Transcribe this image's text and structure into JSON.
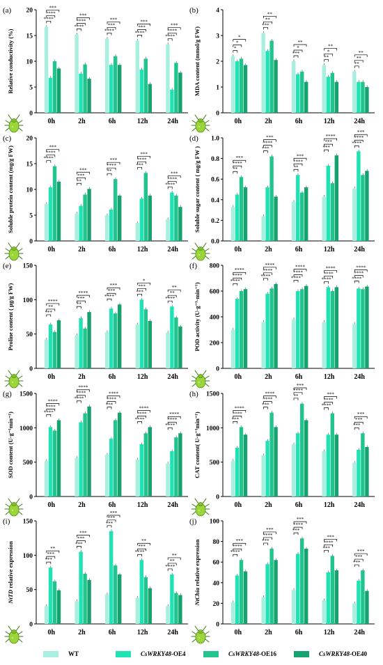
{
  "colors": [
    "#a8efe0",
    "#1fe3b4",
    "#22c48e",
    "#16a26e"
  ],
  "legend": [
    {
      "gene": "",
      "suffix": "WT"
    },
    {
      "gene": "CsWRKY48",
      "suffix": "-OE4"
    },
    {
      "gene": "CsWRKY48",
      "suffix": "-OE16"
    },
    {
      "gene": "CsWRKY48",
      "suffix": "-OE40"
    }
  ],
  "chart_data": [
    {
      "panel": "(a)",
      "type": "bar",
      "ylabel": "Relative conductivity (%)",
      "ylim": [
        0,
        20
      ],
      "yticks": [
        0,
        5,
        10,
        15,
        20
      ],
      "categories": [
        "0h",
        "2h",
        "6h",
        "12h",
        "24h"
      ],
      "series": [
        {
          "name": "WT",
          "values": [
            16.7,
            15.2,
            14.4,
            14.0,
            13.3
          ]
        },
        {
          "name": "CsWRKY48-OE4",
          "values": [
            6.8,
            7.6,
            9.3,
            8.4,
            4.5
          ]
        },
        {
          "name": "CsWRKY48-OE16",
          "values": [
            10.0,
            9.4,
            11.0,
            10.5,
            9.7
          ]
        },
        {
          "name": "CsWRKY48-OE40",
          "values": [
            8.6,
            6.6,
            9.3,
            5.6,
            7.8
          ]
        }
      ],
      "significance": [
        [
          "****",
          "****",
          "***"
        ],
        [
          "****",
          "****",
          "***"
        ],
        [
          "****",
          "***",
          "***"
        ],
        [
          "****",
          "***",
          "***"
        ],
        [
          "****",
          "****",
          "***"
        ]
      ]
    },
    {
      "panel": "(b)",
      "type": "bar",
      "ylabel": "MDA content (mmol/g FW)",
      "ylim": [
        0,
        4
      ],
      "yticks": [
        0,
        1,
        2,
        3,
        4
      ],
      "categories": [
        "0h",
        "2h",
        "6h",
        "12h",
        "24h"
      ],
      "series": [
        {
          "name": "WT",
          "values": [
            2.2,
            3.1,
            2.0,
            1.85,
            1.6
          ]
        },
        {
          "name": "CsWRKY48-OE4",
          "values": [
            2.0,
            2.4,
            1.5,
            1.4,
            1.2
          ]
        },
        {
          "name": "CsWRKY48-OE16",
          "values": [
            2.1,
            2.8,
            1.6,
            1.55,
            1.2
          ]
        },
        {
          "name": "CsWRKY48-OE40",
          "values": [
            1.85,
            2.05,
            1.2,
            1.2,
            1.0
          ]
        }
      ],
      "significance": [
        [
          "*",
          "*",
          "*"
        ],
        [
          "***",
          "**",
          "**"
        ],
        [
          "***",
          "*",
          "**"
        ],
        [
          "**",
          "*",
          "**"
        ],
        [
          "**",
          "**",
          "**"
        ]
      ]
    },
    {
      "panel": "(c)",
      "type": "bar",
      "ylabel": "Soluble protein content (mg/g FW)",
      "ylim": [
        0,
        20
      ],
      "yticks": [
        0,
        5,
        10,
        15,
        20
      ],
      "categories": [
        "0h",
        "2h",
        "6h",
        "12h",
        "24h"
      ],
      "series": [
        {
          "name": "WT",
          "values": [
            7.2,
            5.3,
            5.0,
            3.5,
            4.2
          ]
        },
        {
          "name": "CsWRKY48-OE4",
          "values": [
            10.4,
            6.8,
            6.1,
            8.2,
            9.4
          ]
        },
        {
          "name": "CsWRKY48-OE16",
          "values": [
            14.5,
            9.0,
            12.0,
            13.2,
            8.8
          ]
        },
        {
          "name": "CsWRKY48-OE40",
          "values": [
            11.5,
            10.1,
            8.8,
            8.8,
            6.6
          ]
        }
      ],
      "significance": [
        [
          "****",
          "****",
          "***"
        ],
        [
          "**",
          "***",
          "***"
        ],
        [
          "**",
          "****",
          "***"
        ],
        [
          "***",
          "****",
          "***"
        ],
        [
          "****",
          "****",
          "***"
        ]
      ]
    },
    {
      "panel": "(d)",
      "type": "bar",
      "ylabel": "Soluble sugar content ( mg/g FW )",
      "ylim": [
        0,
        1.0
      ],
      "yticks": [
        0.0,
        0.2,
        0.4,
        0.6,
        0.8,
        1.0
      ],
      "categories": [
        "0h",
        "2h",
        "6h",
        "12h",
        "24h"
      ],
      "series": [
        {
          "name": "WT",
          "values": [
            0.33,
            0.24,
            0.38,
            0.43,
            0.51
          ]
        },
        {
          "name": "CsWRKY48-OE4",
          "values": [
            0.45,
            0.52,
            0.64,
            0.73,
            0.87
          ]
        },
        {
          "name": "CsWRKY48-OE16",
          "values": [
            0.62,
            0.82,
            0.47,
            0.56,
            0.64
          ]
        },
        {
          "name": "CsWRKY48-OE40",
          "values": [
            0.52,
            0.43,
            0.52,
            0.83,
            0.68
          ]
        }
      ],
      "significance": [
        [
          "**",
          "****",
          "***"
        ],
        [
          "***",
          "****",
          "***"
        ],
        [
          "**",
          "****",
          "***"
        ],
        [
          "***",
          "***",
          "****"
        ],
        [
          "****",
          "****",
          "***"
        ]
      ]
    },
    {
      "panel": "(e)",
      "type": "bar",
      "ylabel": "Proline content ( μg/g FW)",
      "ylim": [
        0,
        150
      ],
      "yticks": [
        0,
        50,
        100,
        150
      ],
      "categories": [
        "0h",
        "2h",
        "6h",
        "12h",
        "24h"
      ],
      "series": [
        {
          "name": "WT",
          "values": [
            42,
            48,
            53,
            64,
            52
          ]
        },
        {
          "name": "CsWRKY48-OE4",
          "values": [
            64,
            73,
            87,
            100,
            90
          ]
        },
        {
          "name": "CsWRKY48-OE16",
          "values": [
            53,
            58,
            80,
            86,
            74
          ]
        },
        {
          "name": "CsWRKY48-OE40",
          "values": [
            70,
            82,
            93,
            69,
            61
          ]
        }
      ],
      "significance": [
        [
          "***",
          "**",
          "****"
        ],
        [
          "**",
          "***",
          "****"
        ],
        [
          "****",
          "***",
          "***"
        ],
        [
          "***",
          "***",
          "*"
        ],
        [
          "****",
          "**",
          "**"
        ]
      ]
    },
    {
      "panel": "(f)",
      "type": "bar",
      "ylabel": "POD activity (U·g⁻¹·min⁻¹)",
      "ylim": [
        0,
        800
      ],
      "yticks": [
        0,
        200,
        400,
        600,
        800
      ],
      "categories": [
        "0h",
        "2h",
        "6h",
        "12h",
        "24h"
      ],
      "series": [
        {
          "name": "WT",
          "values": [
            300,
            360,
            380,
            360,
            345
          ]
        },
        {
          "name": "CsWRKY48-OE4",
          "values": [
            540,
            580,
            600,
            630,
            620
          ]
        },
        {
          "name": "CsWRKY48-OE16",
          "values": [
            600,
            620,
            615,
            600,
            615
          ]
        },
        {
          "name": "CsWRKY48-OE40",
          "values": [
            615,
            655,
            640,
            630,
            635
          ]
        }
      ],
      "significance": [
        [
          "****",
          "****",
          "****"
        ],
        [
          "****",
          "****",
          "****"
        ],
        [
          "****",
          "****",
          "****"
        ],
        [
          "****",
          "****",
          "****"
        ],
        [
          "****",
          "****",
          "****"
        ]
      ]
    },
    {
      "panel": "(g)",
      "type": "bar",
      "ylabel": "SOD content (U·g⁻¹min⁻¹)",
      "ylim": [
        0,
        1500
      ],
      "yticks": [
        0,
        500,
        1000,
        1500
      ],
      "categories": [
        "0h",
        "2h",
        "6h",
        "12h",
        "24h"
      ],
      "series": [
        {
          "name": "WT",
          "values": [
            520,
            560,
            610,
            540,
            480
          ]
        },
        {
          "name": "CsWRKY48-OE4",
          "values": [
            1010,
            1080,
            840,
            760,
            660
          ]
        },
        {
          "name": "CsWRKY48-OE16",
          "values": [
            960,
            1210,
            1110,
            920,
            860
          ]
        },
        {
          "name": "CsWRKY48-OE40",
          "values": [
            1110,
            1310,
            1220,
            1010,
            920
          ]
        }
      ],
      "significance": [
        [
          "****",
          "****",
          "****"
        ],
        [
          "****",
          "****",
          "****"
        ],
        [
          "***",
          "****",
          "****"
        ],
        [
          "****",
          "****",
          "****"
        ],
        [
          "****",
          "****",
          "****"
        ]
      ]
    },
    {
      "panel": "(h)",
      "type": "bar",
      "ylabel": "CAT content( U·g⁻¹min⁻¹)",
      "ylim": [
        0,
        1500
      ],
      "yticks": [
        0,
        500,
        1000,
        1500
      ],
      "categories": [
        "0h",
        "2h",
        "6h",
        "12h",
        "24h"
      ],
      "series": [
        {
          "name": "WT",
          "values": [
            520,
            600,
            760,
            660,
            490
          ]
        },
        {
          "name": "CsWRKY48-OE4",
          "values": [
            710,
            810,
            920,
            900,
            680
          ]
        },
        {
          "name": "CsWRKY48-OE16",
          "values": [
            1010,
            1220,
            1350,
            1210,
            920
          ]
        },
        {
          "name": "CsWRKY48-OE40",
          "values": [
            900,
            1010,
            1110,
            900,
            720
          ]
        }
      ],
      "significance": [
        [
          "***",
          "****",
          "****"
        ],
        [
          "***",
          "****",
          "****"
        ],
        [
          "**",
          "****",
          "***"
        ],
        [
          "****",
          "****",
          "***"
        ],
        [
          "***",
          "***",
          "***"
        ]
      ]
    },
    {
      "panel": "(i)",
      "type": "bar",
      "ylabel": "NtTD relative expression",
      "ylim": [
        0,
        150
      ],
      "yticks": [
        0,
        50,
        100,
        150
      ],
      "categories": [
        "0h",
        "2h",
        "6h",
        "12h",
        "24h"
      ],
      "series": [
        {
          "name": "WT",
          "values": [
            26,
            33,
            43,
            38,
            26
          ]
        },
        {
          "name": "CsWRKY48-OE4",
          "values": [
            82,
            105,
            135,
            93,
            72
          ]
        },
        {
          "name": "CsWRKY48-OE16",
          "values": [
            62,
            73,
            85,
            68,
            45
          ]
        },
        {
          "name": "CsWRKY48-OE40",
          "values": [
            49,
            64,
            72,
            52,
            42
          ]
        }
      ],
      "significance": [
        [
          "***",
          "***",
          "**"
        ],
        [
          "***",
          "***",
          "***"
        ],
        [
          "***",
          "***",
          "***"
        ],
        [
          "****",
          "***",
          "**"
        ],
        [
          "****",
          "**",
          "**"
        ]
      ]
    },
    {
      "panel": "(j)",
      "type": "bar",
      "ylabel": "NtChia relative expression",
      "ylim": [
        0,
        100
      ],
      "yticks": [
        0,
        20,
        40,
        60,
        80,
        100
      ],
      "categories": [
        "0h",
        "2h",
        "6h",
        "12h",
        "24h"
      ],
      "series": [
        {
          "name": "WT",
          "values": [
            21,
            26,
            33,
            23,
            20
          ]
        },
        {
          "name": "CsWRKY48-OE4",
          "values": [
            47,
            58,
            68,
            50,
            42
          ]
        },
        {
          "name": "CsWRKY48-OE16",
          "values": [
            62,
            73,
            83,
            66,
            52
          ]
        },
        {
          "name": "CsWRKY48-OE40",
          "values": [
            51,
            62,
            73,
            52,
            32
          ]
        }
      ],
      "significance": [
        [
          "****",
          "****",
          "***"
        ],
        [
          "***",
          "****",
          "***"
        ],
        [
          "***",
          "****",
          "***"
        ],
        [
          "***",
          "****",
          "***"
        ],
        [
          "***",
          "***",
          "***"
        ]
      ]
    }
  ]
}
